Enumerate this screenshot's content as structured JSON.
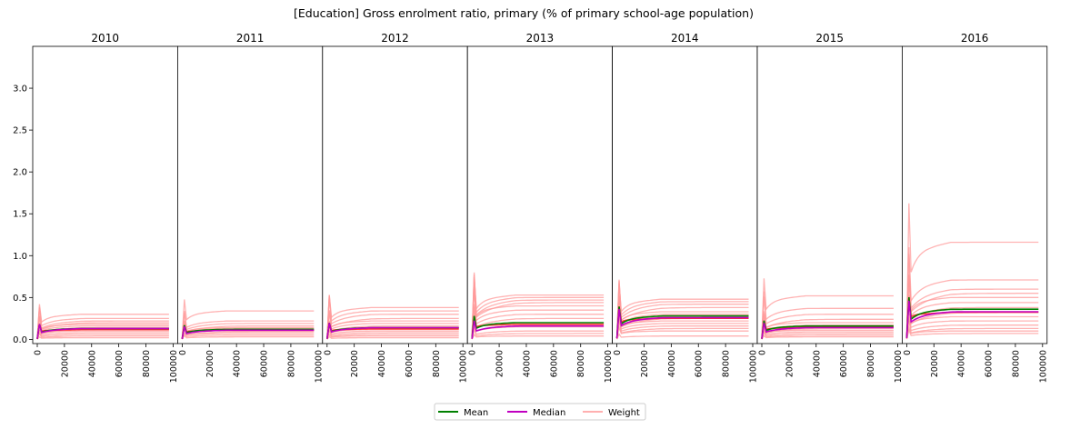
{
  "chart_data": {
    "type": "line",
    "title": "[Education] Gross enrolment ratio, primary (% of primary school-age population)",
    "panels": [
      {
        "label": "2010",
        "mean_end": 0.13,
        "median_end": 0.13,
        "weights_end": [
          0.3,
          0.25,
          0.22,
          0.2,
          0.18,
          0.16,
          0.14,
          0.12,
          0.1,
          0.08,
          0.06,
          0.04,
          0.02
        ]
      },
      {
        "label": "2011",
        "mean_end": 0.12,
        "median_end": 0.11,
        "weights_end": [
          0.34,
          0.22,
          0.19,
          0.16,
          0.14,
          0.13,
          0.11,
          0.09,
          0.07,
          0.05,
          0.03
        ]
      },
      {
        "label": "2012",
        "mean_end": 0.14,
        "median_end": 0.14,
        "weights_end": [
          0.38,
          0.34,
          0.3,
          0.25,
          0.22,
          0.19,
          0.16,
          0.14,
          0.12,
          0.1,
          0.08,
          0.06,
          0.04,
          0.02
        ]
      },
      {
        "label": "2013",
        "mean_end": 0.2,
        "median_end": 0.16,
        "weights_end": [
          0.53,
          0.5,
          0.47,
          0.44,
          0.4,
          0.35,
          0.3,
          0.25,
          0.2,
          0.15,
          0.1,
          0.07,
          0.04
        ]
      },
      {
        "label": "2014",
        "mean_end": 0.28,
        "median_end": 0.26,
        "weights_end": [
          0.48,
          0.45,
          0.42,
          0.38,
          0.33,
          0.3,
          0.27,
          0.25,
          0.22,
          0.19,
          0.16,
          0.13,
          0.1,
          0.04
        ]
      },
      {
        "label": "2015",
        "mean_end": 0.16,
        "median_end": 0.14,
        "weights_end": [
          0.52,
          0.37,
          0.3,
          0.24,
          0.2,
          0.17,
          0.15,
          0.13,
          0.11,
          0.09,
          0.07,
          0.05,
          0.03
        ]
      },
      {
        "label": "2016",
        "mean_end": 0.36,
        "median_end": 0.33,
        "weights_end": [
          1.16,
          0.71,
          0.6,
          0.55,
          0.5,
          0.44,
          0.38,
          0.32,
          0.27,
          0.22,
          0.17,
          0.13,
          0.1,
          0.07
        ]
      }
    ],
    "x_ticks": [
      "0",
      "20000",
      "40000",
      "60000",
      "80000",
      "100000"
    ],
    "xlim": [
      0,
      100000
    ],
    "y_ticks": [
      "0.0",
      "0.5",
      "1.0",
      "1.5",
      "2.0",
      "2.5",
      "3.0"
    ],
    "ylim": [
      -0.05,
      3.5
    ],
    "legend": {
      "placement": "bottom-center",
      "entries": [
        {
          "label": "Mean",
          "color": "#008000"
        },
        {
          "label": "Median",
          "color": "#c000c0"
        },
        {
          "label": "Weight",
          "color": "#ffb0b0"
        }
      ]
    },
    "colors": {
      "mean": "#008000",
      "median": "#c000c0",
      "weight": "#ff9a9a",
      "weight_dense": "#ff1a1a"
    }
  }
}
